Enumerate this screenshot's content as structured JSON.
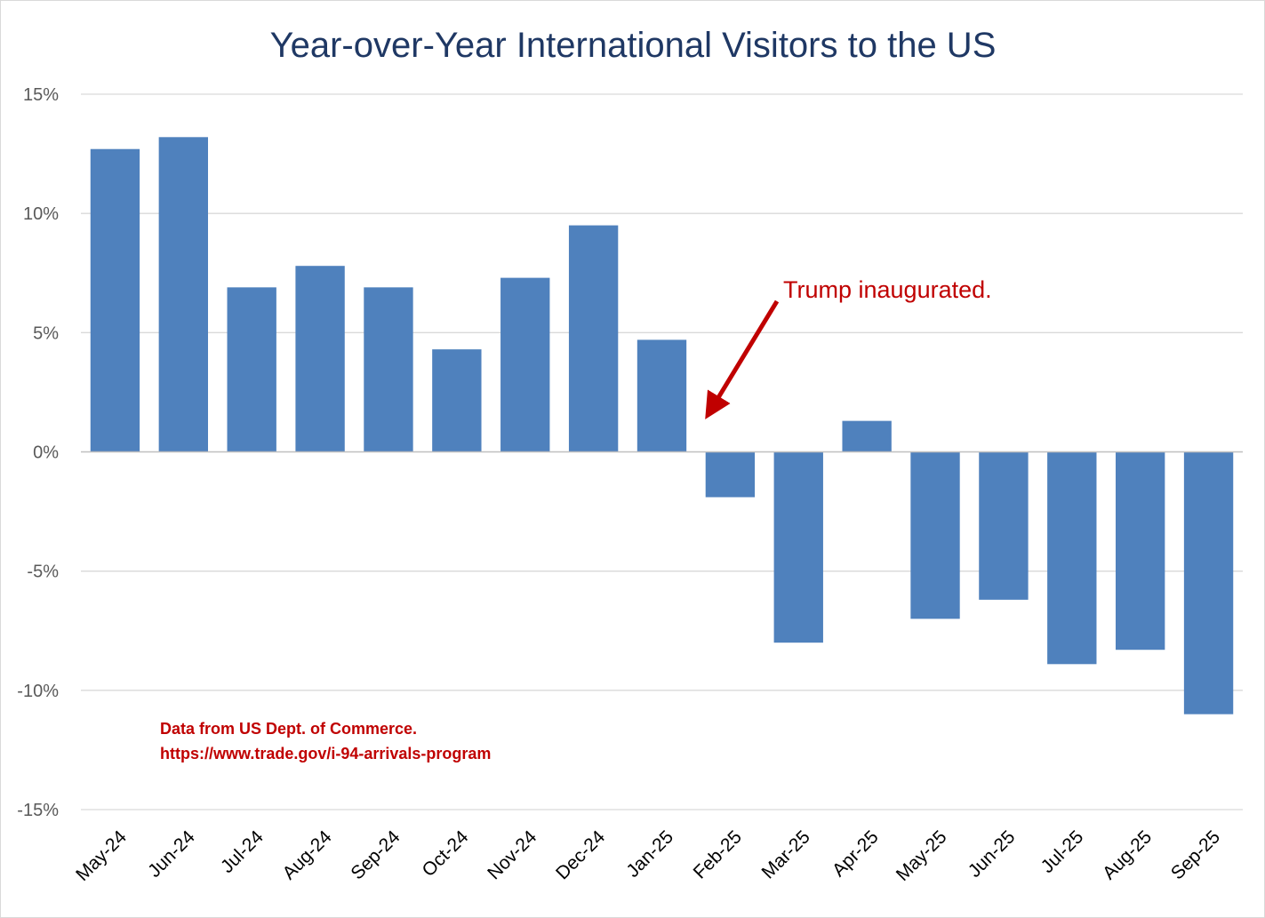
{
  "chart_data": {
    "type": "bar",
    "title": "Year-over-Year International Visitors to the US",
    "xlabel": "",
    "ylabel": "",
    "categories": [
      "May-24",
      "Jun-24",
      "Jul-24",
      "Aug-24",
      "Sep-24",
      "Oct-24",
      "Nov-24",
      "Dec-24",
      "Jan-25",
      "Feb-25",
      "Mar-25",
      "Apr-25",
      "May-25",
      "Jun-25",
      "Jul-25",
      "Aug-25",
      "Sep-25"
    ],
    "values": [
      12.7,
      13.2,
      6.9,
      7.8,
      6.9,
      4.3,
      7.3,
      9.5,
      4.7,
      -1.9,
      -8.0,
      1.3,
      -7.0,
      -6.2,
      -8.9,
      -8.3,
      -11.0
    ],
    "ylim": [
      -15,
      15
    ],
    "yticks": [
      15,
      10,
      5,
      0,
      -5,
      -10,
      -15
    ],
    "ytick_labels": [
      "15%",
      "10%",
      "5%",
      "0%",
      "-5%",
      "-10%",
      "-15%"
    ],
    "grid": true,
    "legend": "none",
    "bar_color": "#4f81bd",
    "annotations": [
      {
        "text": "Trump inaugurated.",
        "color": "#c00000",
        "points_to": "Feb-25"
      }
    ],
    "source_note": {
      "line1": "Data from US Dept. of Commerce.",
      "line2": "https://www.trade.gov/i-94-arrivals-program",
      "color": "#c00000"
    }
  }
}
